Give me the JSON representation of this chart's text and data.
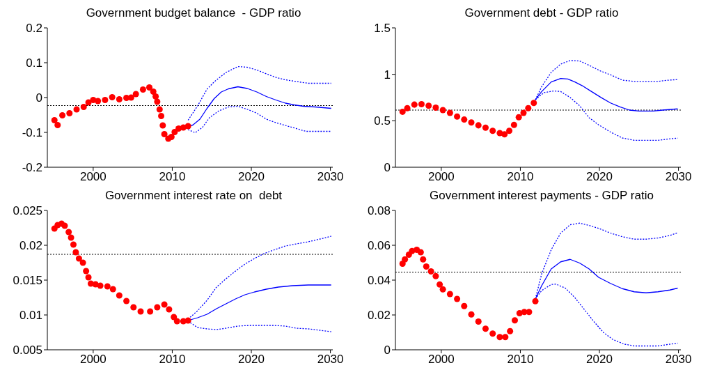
{
  "chart_data": [
    {
      "type": "line",
      "title": "Government budget balance  - GDP ratio",
      "xlim": [
        1994.2,
        2030.3
      ],
      "xticks": [
        2000,
        2010,
        2020,
        2030
      ],
      "ylim": [
        -0.2,
        0.2
      ],
      "yticks": [
        -0.2,
        -0.1,
        0,
        0.1,
        0.2
      ],
      "series": [
        {
          "type": "scatter",
          "marker": "circle",
          "color": "#ff0000",
          "x": [
            1995.1,
            1995.5,
            1996.1,
            1997.0,
            1997.9,
            1998.8,
            1999.4,
            2000.0,
            2000.6,
            2001.5,
            2002.4,
            2003.3,
            2004.2,
            2004.8,
            2005.4,
            2006.3,
            2007.1,
            2007.6,
            2007.9,
            2008.1,
            2008.4,
            2008.6,
            2008.8,
            2009.0,
            2009.5,
            2009.9,
            2010.3,
            2010.8,
            2011.4,
            2012.0
          ],
          "values": [
            -0.065,
            -0.079,
            -0.051,
            -0.045,
            -0.034,
            -0.027,
            -0.014,
            -0.007,
            -0.01,
            -0.007,
            0.001,
            -0.005,
            -0.001,
            0,
            0.01,
            0.023,
            0.029,
            0.017,
            0.003,
            -0.012,
            -0.034,
            -0.053,
            -0.08,
            -0.105,
            -0.118,
            -0.113,
            -0.099,
            -0.089,
            -0.086,
            -0.082
          ]
        },
        {
          "type": "line",
          "marker": "none",
          "line_style": "solid",
          "color": "#0000ff",
          "x": [
            2012.0,
            2012.6,
            2013.5,
            2014.4,
            2015.3,
            2016.2,
            2017.1,
            2018.3,
            2019.5,
            2020.7,
            2021.9,
            2023.1,
            2024.3,
            2025.4,
            2026.6,
            2028.1,
            2030.1
          ],
          "values": [
            -0.082,
            -0.079,
            -0.062,
            -0.031,
            -0.003,
            0.016,
            0.025,
            0.031,
            0.026,
            0.016,
            0.003,
            -0.007,
            -0.016,
            -0.021,
            -0.025,
            -0.027,
            -0.031
          ]
        },
        {
          "type": "line",
          "marker": "none",
          "line_style": "dotted",
          "color": "#0000ff",
          "x": [
            2012.0,
            2013.2,
            2014.4,
            2015.3,
            2016.8,
            2018.3,
            2019.5,
            2020.7,
            2021.9,
            2023.1,
            2024.3,
            2025.7,
            2027.2,
            2030.1
          ],
          "values": [
            -0.065,
            -0.024,
            0.024,
            0.045,
            0.072,
            0.089,
            0.087,
            0.079,
            0.068,
            0.058,
            0.051,
            0.046,
            0.041,
            0.041
          ]
        },
        {
          "type": "line",
          "marker": "none",
          "line_style": "dotted",
          "color": "#0000ff",
          "x": [
            2012.0,
            2012.9,
            2013.8,
            2014.7,
            2015.9,
            2017.1,
            2018.3,
            2019.5,
            2020.7,
            2021.9,
            2023.1,
            2024.3,
            2025.7,
            2026.9,
            2030.1
          ],
          "values": [
            -0.092,
            -0.101,
            -0.086,
            -0.058,
            -0.038,
            -0.027,
            -0.025,
            -0.034,
            -0.045,
            -0.062,
            -0.072,
            -0.08,
            -0.089,
            -0.097,
            -0.097
          ]
        }
      ],
      "ref_lines": [
        {
          "axis": "y",
          "value": -0.023,
          "color": "#000000",
          "line_style": "dotted"
        }
      ]
    },
    {
      "type": "line",
      "title": "Government debt - GDP ratio",
      "xlim": [
        1994.2,
        2030.3
      ],
      "xticks": [
        2000,
        2010,
        2020,
        2030
      ],
      "ylim": [
        0,
        1.5
      ],
      "yticks": [
        0,
        0.5,
        1,
        1.5
      ],
      "series": [
        {
          "type": "scatter",
          "marker": "circle",
          "color": "#ff0000",
          "x": [
            1995.1,
            1995.7,
            1996.6,
            1997.5,
            1998.4,
            1999.3,
            2000.2,
            2001.1,
            2002.0,
            2002.9,
            2003.8,
            2004.7,
            2005.6,
            2006.5,
            2007.4,
            2008.0,
            2008.6,
            2009.2,
            2009.8,
            2010.4,
            2011.0,
            2011.7
          ],
          "values": [
            0.597,
            0.636,
            0.674,
            0.679,
            0.662,
            0.641,
            0.615,
            0.585,
            0.546,
            0.513,
            0.482,
            0.451,
            0.426,
            0.392,
            0.367,
            0.354,
            0.392,
            0.456,
            0.538,
            0.585,
            0.636,
            0.692
          ]
        },
        {
          "type": "line",
          "marker": "none",
          "line_style": "solid",
          "color": "#0000ff",
          "x": [
            2011.9,
            2012.7,
            2013.9,
            2015.1,
            2016.0,
            2016.9,
            2017.8,
            2019.0,
            2020.2,
            2021.4,
            2022.6,
            2023.8,
            2025.0,
            2026.8,
            2028.0,
            2029.9
          ],
          "values": [
            0.726,
            0.815,
            0.918,
            0.956,
            0.949,
            0.918,
            0.879,
            0.815,
            0.751,
            0.692,
            0.649,
            0.615,
            0.605,
            0.605,
            0.615,
            0.628
          ]
        },
        {
          "type": "line",
          "marker": "none",
          "line_style": "dotted",
          "color": "#0000ff",
          "x": [
            2011.9,
            2012.7,
            2013.9,
            2015.1,
            2016.3,
            2017.5,
            2019.0,
            2020.2,
            2021.4,
            2022.9,
            2024.4,
            2027.4,
            2028.6,
            2029.9
          ],
          "values": [
            0.726,
            0.867,
            1.021,
            1.11,
            1.149,
            1.144,
            1.085,
            1.033,
            0.995,
            0.938,
            0.923,
            0.923,
            0.936,
            0.944
          ]
        },
        {
          "type": "line",
          "marker": "none",
          "line_style": "dotted",
          "color": "#0000ff",
          "x": [
            2011.9,
            2013.0,
            2014.2,
            2015.1,
            2016.3,
            2017.5,
            2018.7,
            2019.9,
            2021.4,
            2022.9,
            2024.4,
            2027.4,
            2028.6,
            2029.9
          ],
          "values": [
            0.726,
            0.803,
            0.821,
            0.815,
            0.751,
            0.662,
            0.533,
            0.456,
            0.379,
            0.315,
            0.29,
            0.29,
            0.303,
            0.313
          ]
        }
      ],
      "ref_lines": [
        {
          "axis": "y",
          "value": 0.615,
          "color": "#000000",
          "line_style": "dotted"
        }
      ]
    },
    {
      "type": "line",
      "title": "Government interest rate on  debt",
      "xlim": [
        1994.2,
        2030.3
      ],
      "xticks": [
        2000,
        2010,
        2020,
        2030
      ],
      "ylim": [
        0.005,
        0.025
      ],
      "yticks": [
        0.005,
        0.01,
        0.015,
        0.02,
        0.025
      ],
      "series": [
        {
          "type": "scatter",
          "marker": "circle",
          "color": "#ff0000",
          "x": [
            1995.1,
            1995.5,
            1996.0,
            1996.4,
            1996.9,
            1997.2,
            1997.5,
            1997.8,
            1998.2,
            1998.7,
            1999.1,
            1999.4,
            1999.7,
            2000.3,
            2000.9,
            2001.8,
            2002.5,
            2003.3,
            2004.2,
            2005.1,
            2006.0,
            2007.2,
            2008.1,
            2009.0,
            2009.6,
            2010.2,
            2010.6,
            2011.4,
            2012.0
          ],
          "values": [
            0.0224,
            0.0229,
            0.0231,
            0.0228,
            0.0219,
            0.0211,
            0.0201,
            0.019,
            0.0181,
            0.0175,
            0.0163,
            0.0154,
            0.0145,
            0.0144,
            0.0142,
            0.0141,
            0.0137,
            0.0128,
            0.012,
            0.0111,
            0.0105,
            0.0105,
            0.0111,
            0.0115,
            0.0108,
            0.0097,
            0.0091,
            0.0091,
            0.0092
          ]
        },
        {
          "type": "line",
          "marker": "none",
          "line_style": "solid",
          "color": "#0000ff",
          "x": [
            2012.0,
            2013.2,
            2014.4,
            2015.6,
            2016.8,
            2018.0,
            2019.2,
            2020.4,
            2021.9,
            2023.4,
            2025.2,
            2027.2,
            2030.1
          ],
          "values": [
            0.0092,
            0.0096,
            0.0101,
            0.0109,
            0.0116,
            0.0123,
            0.0129,
            0.0133,
            0.0137,
            0.014,
            0.0142,
            0.0143,
            0.0143
          ]
        },
        {
          "type": "line",
          "marker": "none",
          "line_style": "dotted",
          "color": "#0000ff",
          "x": [
            2012.0,
            2013.2,
            2014.4,
            2015.6,
            2016.8,
            2018.0,
            2019.2,
            2020.4,
            2021.6,
            2022.8,
            2024.3,
            2025.7,
            2027.2,
            2028.7,
            2030.1
          ],
          "values": [
            0.0094,
            0.0106,
            0.0121,
            0.014,
            0.0152,
            0.0163,
            0.0173,
            0.0181,
            0.0188,
            0.0193,
            0.0199,
            0.0202,
            0.0205,
            0.0209,
            0.0213
          ]
        },
        {
          "type": "line",
          "marker": "none",
          "line_style": "dotted",
          "color": "#0000ff",
          "x": [
            2012.0,
            2013.2,
            2014.4,
            2015.6,
            2016.8,
            2018.3,
            2019.8,
            2021.3,
            2022.8,
            2024.3,
            2025.7,
            2027.2,
            2028.7,
            2030.1
          ],
          "values": [
            0.0091,
            0.0082,
            0.008,
            0.0079,
            0.0081,
            0.0084,
            0.0085,
            0.0085,
            0.0085,
            0.0084,
            0.0081,
            0.008,
            0.0078,
            0.0076
          ]
        }
      ],
      "ref_lines": [
        {
          "axis": "y",
          "value": 0.0187,
          "color": "#000000",
          "line_style": "dotted"
        }
      ]
    },
    {
      "type": "line",
      "title": "Government interest payments - GDP ratio",
      "xlim": [
        1994.2,
        2030.3
      ],
      "xticks": [
        2000,
        2010,
        2020,
        2030
      ],
      "ylim": [
        0,
        0.08
      ],
      "yticks": [
        0,
        0.02,
        0.04,
        0.06,
        0.08
      ],
      "series": [
        {
          "type": "scatter",
          "marker": "circle",
          "color": "#ff0000",
          "x": [
            1995.1,
            1995.4,
            1995.9,
            1996.3,
            1996.9,
            1997.4,
            1997.7,
            1998.1,
            1998.7,
            1999.3,
            1999.8,
            2000.2,
            2001.1,
            2002.0,
            2002.9,
            2003.8,
            2004.7,
            2005.6,
            2006.5,
            2007.4,
            2008.1,
            2008.7,
            2009.3,
            2009.9,
            2010.5,
            2011.1,
            2011.9
          ],
          "values": [
            0.0494,
            0.0519,
            0.0546,
            0.0567,
            0.0574,
            0.056,
            0.0519,
            0.0478,
            0.045,
            0.0423,
            0.0375,
            0.0347,
            0.032,
            0.0292,
            0.0251,
            0.0203,
            0.0162,
            0.0121,
            0.0093,
            0.0073,
            0.0073,
            0.0107,
            0.0169,
            0.021,
            0.0217,
            0.0217,
            0.0279
          ]
        },
        {
          "type": "line",
          "marker": "none",
          "line_style": "solid",
          "color": "#0000ff",
          "x": [
            2011.9,
            2012.7,
            2013.9,
            2015.1,
            2016.3,
            2017.5,
            2018.7,
            2019.9,
            2021.4,
            2022.9,
            2024.4,
            2025.9,
            2027.4,
            2028.9,
            2029.9
          ],
          "values": [
            0.0292,
            0.0368,
            0.0464,
            0.0505,
            0.0519,
            0.0498,
            0.0464,
            0.0416,
            0.0381,
            0.0351,
            0.0333,
            0.0327,
            0.0333,
            0.0343,
            0.0354
          ]
        },
        {
          "type": "line",
          "marker": "none",
          "line_style": "dotted",
          "color": "#0000ff",
          "x": [
            2011.9,
            2012.7,
            2013.9,
            2015.1,
            2016.3,
            2017.5,
            2018.7,
            2019.9,
            2021.4,
            2022.9,
            2024.4,
            2025.9,
            2027.4,
            2028.9,
            2029.9
          ],
          "values": [
            0.0292,
            0.0436,
            0.0574,
            0.067,
            0.0718,
            0.0727,
            0.0714,
            0.0697,
            0.067,
            0.0649,
            0.0635,
            0.0635,
            0.0642,
            0.0656,
            0.0672
          ]
        },
        {
          "type": "line",
          "marker": "none",
          "line_style": "dotted",
          "color": "#0000ff",
          "x": [
            2011.9,
            2012.7,
            2013.9,
            2014.5,
            2015.7,
            2016.9,
            2018.1,
            2019.3,
            2020.5,
            2021.7,
            2023.2,
            2024.4,
            2027.4,
            2028.9,
            2029.9
          ],
          "values": [
            0.0292,
            0.034,
            0.0375,
            0.0377,
            0.0354,
            0.0299,
            0.0231,
            0.0162,
            0.01,
            0.0059,
            0.0032,
            0.0022,
            0.0022,
            0.0032,
            0.0038
          ]
        }
      ],
      "ref_lines": [
        {
          "axis": "y",
          "value": 0.0446,
          "color": "#000000",
          "line_style": "dotted"
        }
      ]
    }
  ]
}
